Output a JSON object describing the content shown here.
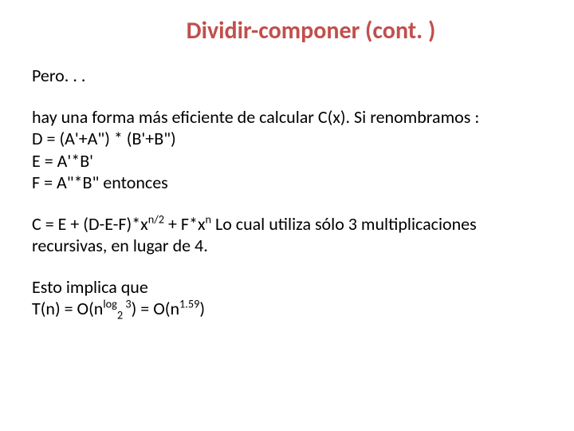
{
  "slide": {
    "title": "Dividir-componer (cont. )",
    "title_color": "#c0504d",
    "title_fontsize": 30,
    "body_fontsize": 22,
    "body_color": "#000000",
    "background_color": "#ffffff",
    "font_family": "Calibri",
    "paragraphs": {
      "p1": "Pero. . .",
      "p2_line1": "hay una forma más eficiente de calcular C(x). Si renombramos :",
      "p2_line2": "D = (A'+A\") * (B'+B\")",
      "p2_line3": "E = A'*B'",
      "p2_line4": "F = A\"*B\" entonces",
      "p3_prefix": "C = E + (D-E-F)*x",
      "p3_exp1": "n/2",
      "p3_mid1": " + F*x",
      "p3_exp2": "n",
      "p3_suffix": " Lo cual utiliza sólo 3 multiplicaciones recursivas, en lugar de 4.",
      "p4_line1": "Esto implica que",
      "p4_prefix": "T(n) = O(n",
      "p4_exp1": "log",
      "p4_sub1": "2",
      "p4_exp2": " 3",
      "p4_mid": ") = O(n",
      "p4_exp3": "1.59",
      "p4_suffix": ")"
    }
  }
}
